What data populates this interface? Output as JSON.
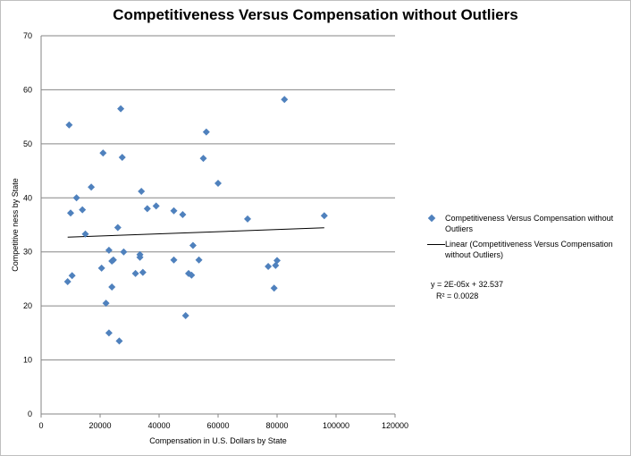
{
  "chart_data": {
    "type": "scatter",
    "title": "Competitiveness Versus Compensation without Outliers",
    "xlabel": "Compensation  in  U.S. Dollars  by State",
    "ylabel": "Competitive ness  by State",
    "xlim": [
      0,
      120000
    ],
    "ylim": [
      0,
      70
    ],
    "x_ticks": [
      "0",
      "20000",
      "40000",
      "60000",
      "80000",
      "100000",
      "120000"
    ],
    "y_ticks": [
      "0",
      "10",
      "20",
      "30",
      "40",
      "50",
      "60",
      "70"
    ],
    "grid": "horizontal",
    "legend_position": "right",
    "series": [
      {
        "name": "Competitiveness Versus Compensation without Outliers",
        "color": "#4f81bd",
        "marker": "diamond",
        "points": [
          [
            9000,
            24.5
          ],
          [
            9500,
            53.5
          ],
          [
            10000,
            37.2
          ],
          [
            10500,
            25.6
          ],
          [
            12000,
            40
          ],
          [
            14000,
            37.8
          ],
          [
            15000,
            33.3
          ],
          [
            17000,
            42
          ],
          [
            20500,
            27
          ],
          [
            21000,
            48.3
          ],
          [
            22000,
            20.5
          ],
          [
            23000,
            30.3
          ],
          [
            23000,
            15
          ],
          [
            24000,
            23.5
          ],
          [
            24000,
            28.3
          ],
          [
            24500,
            28.5
          ],
          [
            26000,
            34.5
          ],
          [
            26500,
            13.5
          ],
          [
            27000,
            56.5
          ],
          [
            27500,
            47.5
          ],
          [
            28000,
            30
          ],
          [
            32000,
            26
          ],
          [
            33500,
            29.5
          ],
          [
            33500,
            29
          ],
          [
            34000,
            41.2
          ],
          [
            34500,
            26.2
          ],
          [
            36000,
            38
          ],
          [
            39000,
            38.5
          ],
          [
            45000,
            37.6
          ],
          [
            45000,
            28.5
          ],
          [
            48000,
            36.9
          ],
          [
            49000,
            18.2
          ],
          [
            50000,
            26
          ],
          [
            51000,
            25.7
          ],
          [
            51500,
            31.2
          ],
          [
            53500,
            28.5
          ],
          [
            55000,
            47.3
          ],
          [
            56000,
            52.2
          ],
          [
            60000,
            42.7
          ],
          [
            70000,
            36.1
          ],
          [
            77000,
            27.3
          ],
          [
            79000,
            23.3
          ],
          [
            79500,
            27.5
          ],
          [
            80000,
            28.4
          ],
          [
            82500,
            58.2
          ],
          [
            96000,
            36.7
          ]
        ]
      }
    ],
    "trendline": {
      "name": "Linear (Competitiveness Versus Compensation without Outliers)",
      "type": "linear",
      "slope": 2e-05,
      "intercept": 32.537,
      "x_range": [
        9000,
        96000
      ],
      "color": "#000000",
      "equation": "y = 2E-05x + 32.537",
      "r_squared": "R² = 0.0028"
    }
  }
}
